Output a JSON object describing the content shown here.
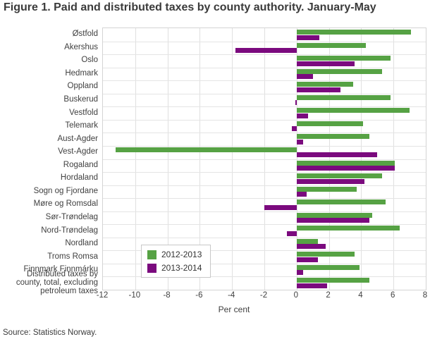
{
  "title": "Figure 1. Paid and distributed taxes by county authority. January-May",
  "source": "Source: Statistics Norway.",
  "chart_data": {
    "type": "bar",
    "orientation": "horizontal",
    "title": "Figure 1. Paid and distributed taxes by county authority. January-May",
    "xlabel": "Per cent",
    "xlim": [
      -12,
      8
    ],
    "xticks": [
      -12,
      -10,
      -8,
      -6,
      -4,
      -2,
      0,
      2,
      4,
      6,
      8
    ],
    "grid": true,
    "legend_position": "inside-center-left",
    "categories": [
      "Østfold",
      "Akershus",
      "Oslo",
      "Hedmark",
      "Oppland",
      "Buskerud",
      "Vestfold",
      "Telemark",
      "Aust-Agder",
      "Vest-Agder",
      "Rogaland",
      "Hordaland",
      "Sogn og Fjordane",
      "Møre og Romsdal",
      "Sør-Trøndelag",
      "Nord-Trøndelag",
      "Nordland",
      "Troms Romsa",
      "Finnmark Finnmárku",
      "Distributed taxes by county, total, excluding petroleum taxes"
    ],
    "series": [
      {
        "name": "2012-2013",
        "color": "#56a244",
        "values": [
          7.1,
          4.3,
          5.8,
          5.3,
          3.5,
          5.8,
          7.0,
          4.1,
          4.5,
          -11.2,
          6.1,
          5.3,
          3.7,
          5.5,
          4.7,
          6.4,
          1.3,
          3.6,
          3.9,
          4.5
        ]
      },
      {
        "name": "2013-2014",
        "color": "#7b0a7e",
        "values": [
          1.4,
          -3.8,
          3.6,
          1.0,
          2.7,
          -0.1,
          0.7,
          -0.3,
          0.4,
          5.0,
          6.1,
          4.2,
          0.6,
          -2.0,
          4.5,
          -0.6,
          1.8,
          1.3,
          0.4,
          1.9
        ]
      }
    ]
  }
}
